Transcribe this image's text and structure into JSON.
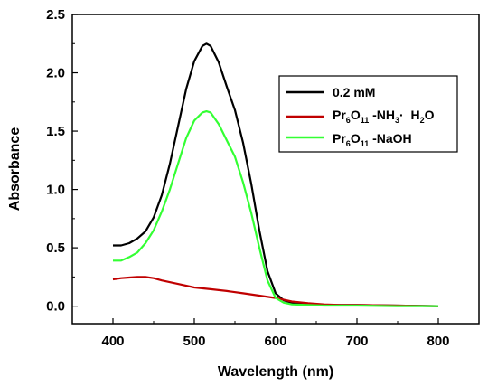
{
  "chart_data": {
    "type": "line",
    "xlabel": "Wavelength (nm)",
    "ylabel": "Absorbance",
    "xlim": [
      350,
      850
    ],
    "ylim": [
      -0.15,
      2.5
    ],
    "xticks": [
      400,
      500,
      600,
      700,
      800
    ],
    "yticks": [
      0.0,
      0.5,
      1.0,
      1.5,
      2.0,
      2.5
    ],
    "xtick_labels": [
      "400",
      "500",
      "600",
      "700",
      "800"
    ],
    "ytick_labels": [
      "0.0",
      "0.5",
      "1.0",
      "1.5",
      "2.0",
      "2.5"
    ],
    "grid": false,
    "legend_position": "top-right",
    "series": [
      {
        "name": "0.2 mM",
        "legend": {
          "base": "0.2 mM"
        },
        "color": "#000000",
        "x": [
          400,
          410,
          420,
          430,
          440,
          450,
          460,
          470,
          480,
          490,
          500,
          510,
          515,
          520,
          530,
          540,
          550,
          560,
          570,
          580,
          590,
          600,
          610,
          620,
          640,
          660,
          680,
          700,
          750,
          800
        ],
        "y": [
          0.52,
          0.52,
          0.54,
          0.58,
          0.64,
          0.76,
          0.95,
          1.22,
          1.54,
          1.86,
          2.1,
          2.23,
          2.25,
          2.23,
          2.09,
          1.88,
          1.68,
          1.4,
          1.05,
          0.65,
          0.3,
          0.11,
          0.05,
          0.03,
          0.02,
          0.01,
          0.01,
          0.01,
          0.005,
          0.0
        ]
      },
      {
        "name": "Pr6O11-NH3·H2O",
        "legend": {
          "base": "Pr",
          "sub1": "6",
          "mid1": "O",
          "sub2": "11",
          "mid2": " -NH",
          "sub3": "3",
          "mid3": "·  H",
          "sub4": "2",
          "tail": "O"
        },
        "color": "#c00000",
        "x": [
          400,
          410,
          420,
          430,
          440,
          450,
          460,
          480,
          500,
          520,
          540,
          560,
          580,
          600,
          620,
          640,
          660,
          680,
          700,
          750,
          800
        ],
        "y": [
          0.23,
          0.24,
          0.245,
          0.25,
          0.25,
          0.24,
          0.22,
          0.19,
          0.16,
          0.145,
          0.13,
          0.11,
          0.09,
          0.07,
          0.04,
          0.025,
          0.015,
          0.01,
          0.01,
          0.005,
          0.0
        ]
      },
      {
        "name": "Pr6O11-NaOH",
        "legend": {
          "base": "Pr",
          "sub1": "6",
          "mid1": "O",
          "sub2": "11",
          "tail": " -NaOH"
        },
        "color": "#33ff33",
        "x": [
          400,
          410,
          420,
          430,
          440,
          450,
          460,
          470,
          480,
          490,
          500,
          510,
          515,
          520,
          530,
          540,
          550,
          560,
          570,
          580,
          590,
          600,
          610,
          620,
          640,
          660,
          680,
          700,
          750,
          800
        ],
        "y": [
          0.39,
          0.39,
          0.42,
          0.46,
          0.54,
          0.65,
          0.81,
          1.0,
          1.22,
          1.44,
          1.59,
          1.66,
          1.67,
          1.66,
          1.56,
          1.42,
          1.28,
          1.06,
          0.8,
          0.5,
          0.22,
          0.07,
          0.03,
          0.015,
          0.01,
          0.005,
          0.005,
          0.005,
          0.0,
          0.0
        ]
      }
    ]
  }
}
